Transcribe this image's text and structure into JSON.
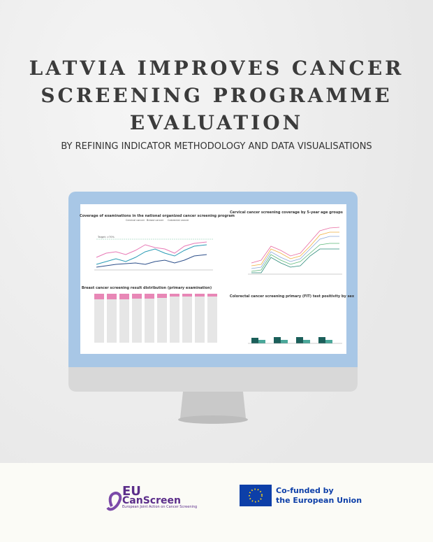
{
  "header": {
    "title_lines": [
      "LATVIA IMPROVES CANCER",
      "SCREENING PROGRAMME",
      "EVALUATION"
    ],
    "subtitle": "BY REFINING INDICATOR METHODOLOGY AND DATA VISUALISATIONS"
  },
  "screen": {
    "panels": [
      {
        "title": "Coverage of examinations in the national organized cancer screening program",
        "legend": [
          "Cervical cancer",
          "Breast cancer",
          "Colorectal cancer"
        ],
        "annotation": "Target: >70%"
      },
      {
        "title": "Cervical cancer screening coverage by 5-year age groups"
      },
      {
        "title": "Breast cancer screening result distribution (primary examination)"
      },
      {
        "title": "Colorectal cancer screening primary (FIT) test positivity by sex"
      }
    ]
  },
  "footer": {
    "logo_left": {
      "mark": "EU",
      "name": "CanScreen",
      "tagline": "European Joint Action on Cancer Screening"
    },
    "logo_right": {
      "line1": "Co-funded by",
      "line2": "the European Union"
    }
  }
}
